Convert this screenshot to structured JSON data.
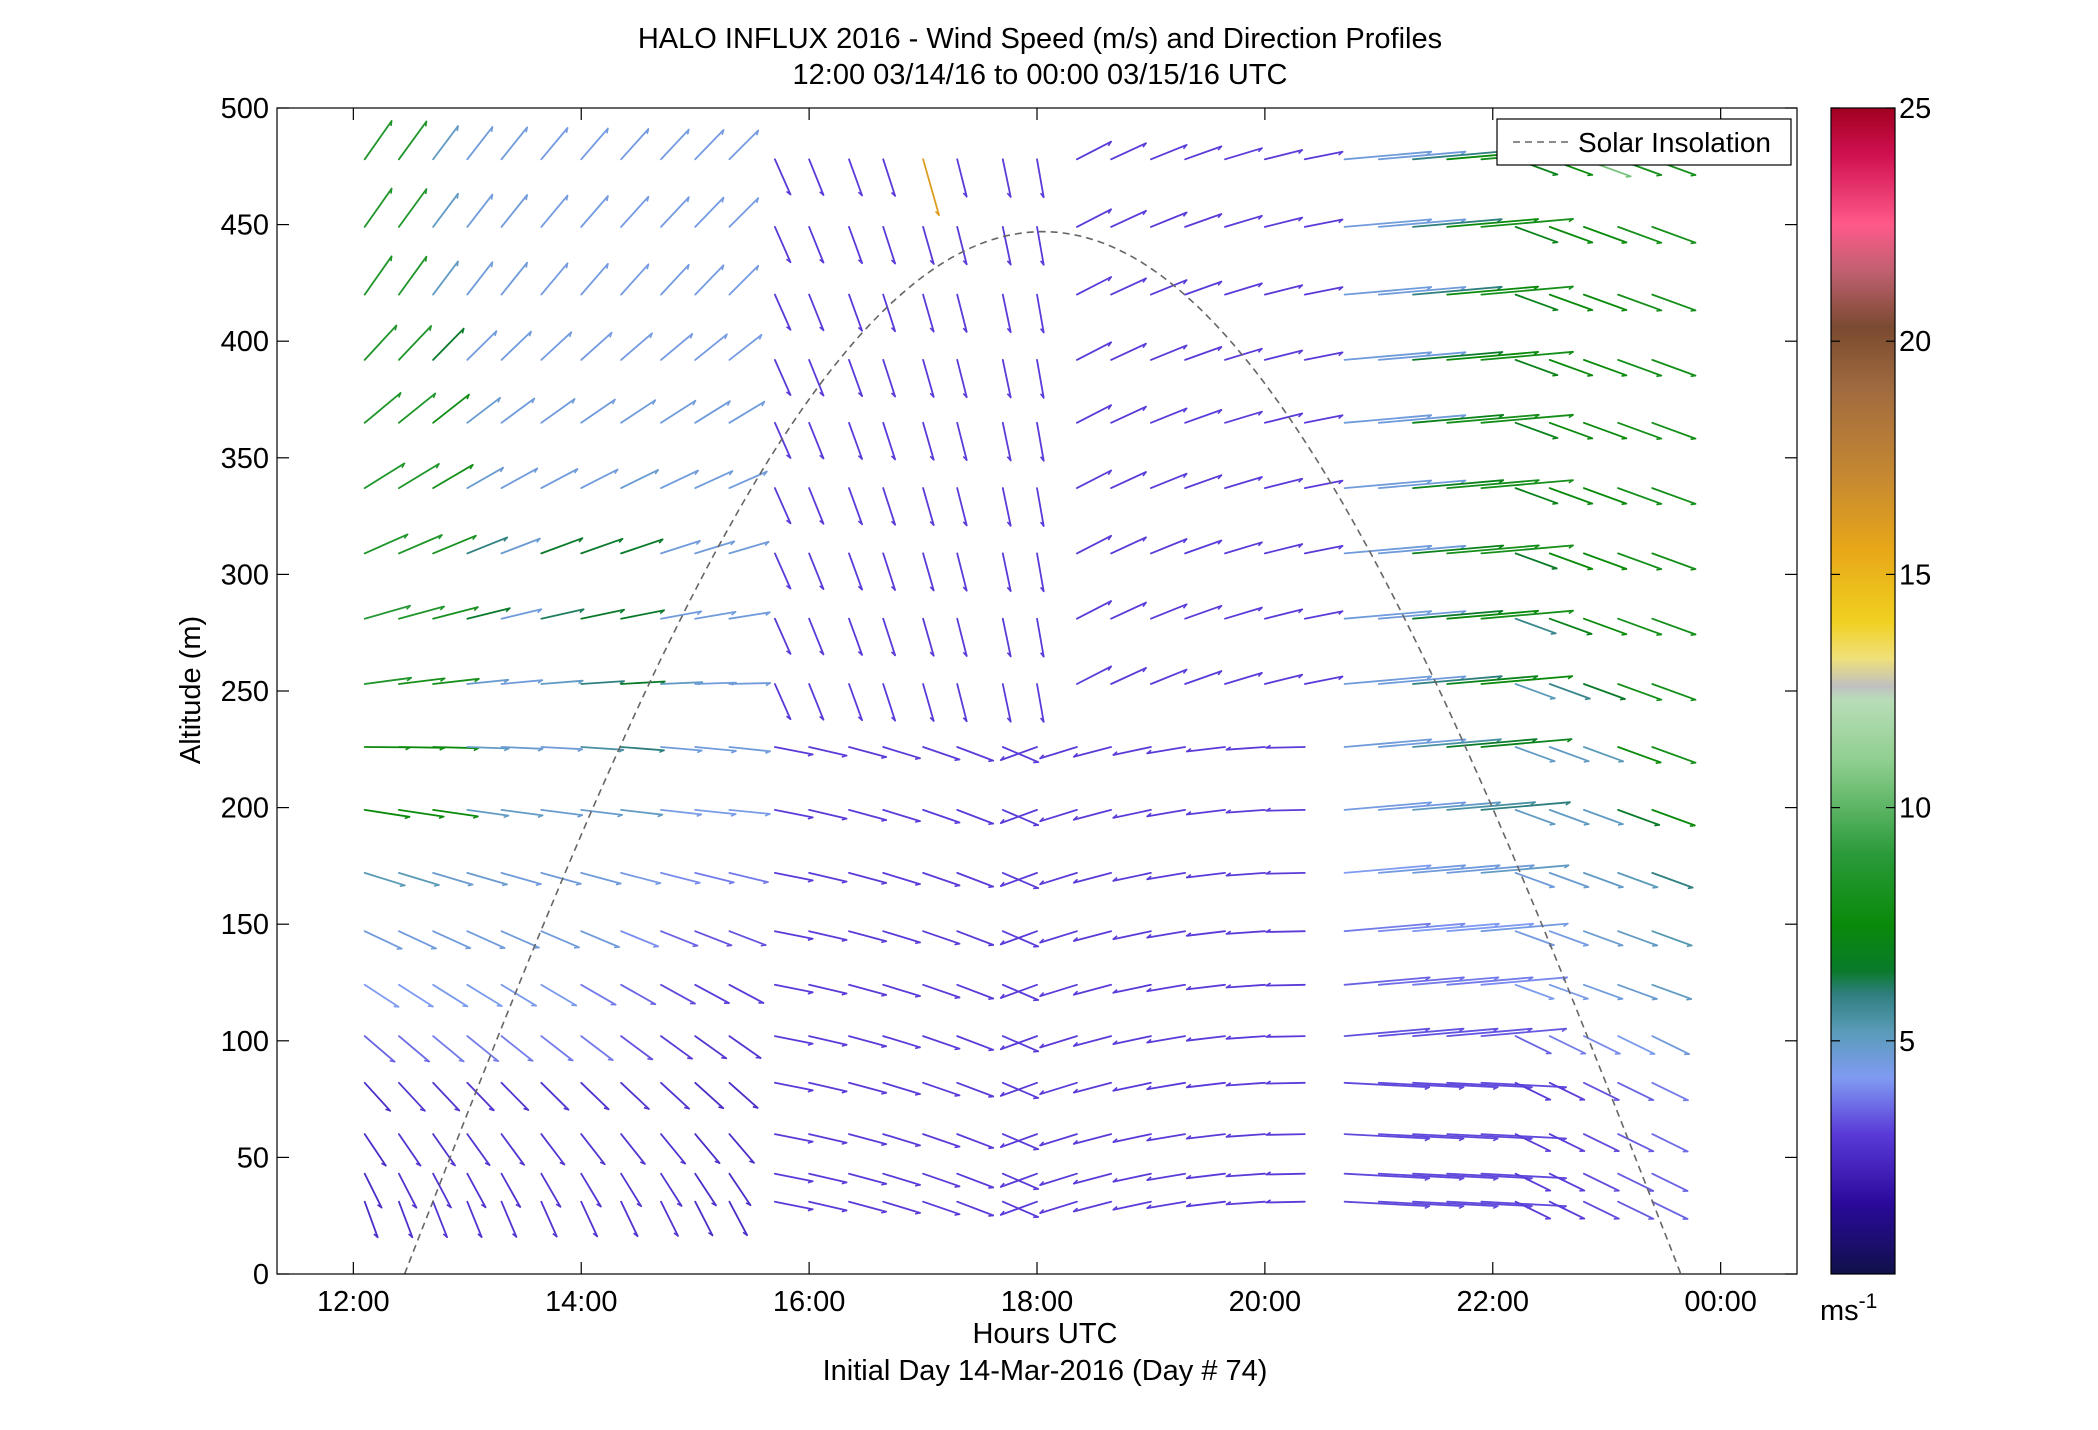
{
  "chart_data": {
    "type": "quiver",
    "title": "HALO INFLUX 2016 - Wind Speed (m/s) and Direction Profiles",
    "subtitle": "12:00 03/14/16 to 00:00 03/15/16  UTC",
    "xlabel": "Hours UTC",
    "xlabel_sub": "Initial Day 14-Mar-2016 (Day # 74)",
    "ylabel": "Altitude (m)",
    "xlim_hours": [
      11.33,
      24.67
    ],
    "ylim": [
      0,
      500
    ],
    "x_ticks": [
      {
        "hour": 12,
        "label": "12:00"
      },
      {
        "hour": 14,
        "label": "14:00"
      },
      {
        "hour": 16,
        "label": "16:00"
      },
      {
        "hour": 18,
        "label": "18:00"
      },
      {
        "hour": 20,
        "label": "20:00"
      },
      {
        "hour": 22,
        "label": "22:00"
      },
      {
        "hour": 24,
        "label": "00:00"
      }
    ],
    "y_ticks": [
      0,
      50,
      100,
      150,
      200,
      250,
      300,
      350,
      400,
      450,
      500
    ],
    "y_tick_labels": [
      "0",
      "50",
      "100",
      "150",
      "200",
      "250",
      "300",
      "350",
      "400",
      "450",
      "500"
    ],
    "legend": {
      "label": "Solar Insolation",
      "placement": "top-right",
      "style": "dashed",
      "color": "#666666"
    },
    "colorbar": {
      "min": 0,
      "max": 25,
      "ticks": [
        5,
        10,
        15,
        20,
        25
      ],
      "tick_labels": [
        "5",
        "10",
        "15",
        "20",
        "25"
      ],
      "unit_base": "ms",
      "unit_exp": "-1",
      "stops": [
        [
          0,
          "#10104a"
        ],
        [
          1.5,
          "#2a0a9a"
        ],
        [
          3,
          "#5a3ad8"
        ],
        [
          4.2,
          "#7f9bf2"
        ],
        [
          5.2,
          "#5a9bb8"
        ],
        [
          6,
          "#2f7f7f"
        ],
        [
          6.5,
          "#0a7a2a"
        ],
        [
          7.5,
          "#0a8a0a"
        ],
        [
          9,
          "#2a9a3a"
        ],
        [
          11,
          "#8fcf8f"
        ],
        [
          12.3,
          "#b8ddb8"
        ],
        [
          12.6,
          "#c0c0c0"
        ],
        [
          13.2,
          "#f0e07a"
        ],
        [
          14,
          "#f0d020"
        ],
        [
          15.5,
          "#e8a818"
        ],
        [
          17,
          "#c88a30"
        ],
        [
          19,
          "#a06a40"
        ],
        [
          20.3,
          "#7a4a30"
        ],
        [
          21.5,
          "#c06070"
        ],
        [
          22.5,
          "#ff5a8a"
        ],
        [
          24,
          "#d01050"
        ],
        [
          25,
          "#a00020"
        ]
      ]
    },
    "solar_insolation_curve": {
      "sunrise_hour": 12.45,
      "sunset_hour": 23.65,
      "peak_hour": 17.95,
      "peak_altitude": 447
    },
    "altitude_levels": [
      31,
      43,
      60,
      82,
      102,
      124,
      147,
      172,
      199,
      226,
      253,
      281,
      309,
      337,
      365,
      392,
      420,
      449,
      478
    ],
    "wind_dir_note": "u/v components: u = eastward, v = northward, in m/s",
    "columns": [
      {
        "hour": 12.1,
        "seg": "A",
        "sp": [
          2.6,
          2.6,
          2.6,
          2.6,
          3.5,
          4.2,
          4.6,
          5.2,
          7.5,
          7.5,
          8.5,
          8.8,
          8.5,
          8.5,
          8.5,
          8.5,
          8.5,
          8.5,
          8.5
        ]
      },
      {
        "hour": 12.4,
        "seg": "A",
        "sp": [
          2.7,
          2.8,
          2.8,
          2.8,
          3.6,
          4.2,
          4.6,
          5.2,
          7.5,
          7.5,
          8.0,
          8.5,
          8.5,
          8.5,
          8.5,
          8.5,
          8.5,
          8.5,
          8.5
        ]
      },
      {
        "hour": 12.7,
        "seg": "A",
        "sp": [
          2.8,
          2.8,
          2.8,
          2.8,
          3.8,
          4.3,
          4.6,
          4.8,
          7.5,
          7.5,
          8.0,
          8.2,
          8.2,
          8.0,
          7.8,
          6.5,
          5.0,
          5.0,
          5.0
        ]
      },
      {
        "hour": 13.0,
        "seg": "A",
        "sp": [
          2.8,
          2.8,
          2.8,
          2.8,
          3.8,
          4.3,
          4.6,
          4.8,
          5.0,
          5.0,
          4.8,
          6.5,
          6.0,
          4.8,
          4.8,
          4.6,
          4.6,
          4.6,
          4.6
        ]
      },
      {
        "hour": 13.3,
        "seg": "A",
        "sp": [
          2.8,
          2.8,
          2.8,
          2.8,
          3.8,
          4.3,
          4.6,
          4.6,
          5.0,
          4.8,
          4.6,
          4.6,
          4.8,
          4.6,
          4.6,
          4.6,
          4.6,
          4.6,
          4.6
        ]
      },
      {
        "hour": 13.65,
        "seg": "A",
        "sp": [
          2.8,
          2.8,
          2.8,
          2.8,
          3.8,
          4.3,
          4.6,
          4.6,
          4.8,
          4.6,
          5.0,
          6.2,
          6.5,
          4.6,
          4.6,
          4.5,
          4.5,
          4.5,
          4.5
        ]
      },
      {
        "hour": 14.0,
        "seg": "A",
        "sp": [
          2.8,
          2.8,
          2.8,
          2.8,
          3.8,
          3.8,
          4.6,
          4.6,
          4.8,
          5.5,
          6.0,
          6.5,
          6.5,
          4.6,
          4.6,
          4.5,
          4.5,
          4.5,
          4.5
        ]
      },
      {
        "hour": 14.35,
        "seg": "A",
        "sp": [
          2.8,
          2.8,
          2.8,
          2.8,
          3.3,
          3.5,
          4.0,
          4.4,
          5.0,
          6.0,
          6.5,
          6.5,
          6.5,
          4.8,
          4.6,
          4.5,
          4.5,
          4.5,
          4.5
        ]
      },
      {
        "hour": 14.7,
        "seg": "A",
        "sp": [
          2.8,
          2.8,
          2.8,
          2.8,
          3.0,
          3.2,
          3.5,
          4.0,
          4.4,
          4.6,
          5.0,
          4.6,
          4.6,
          4.6,
          4.6,
          4.5,
          4.5,
          4.5,
          4.5
        ]
      },
      {
        "hour": 15.0,
        "seg": "A",
        "sp": [
          2.6,
          2.6,
          2.6,
          2.6,
          2.8,
          3.0,
          3.3,
          3.8,
          4.4,
          4.6,
          4.6,
          4.6,
          4.6,
          4.6,
          4.6,
          4.5,
          4.5,
          4.5,
          4.5
        ]
      },
      {
        "hour": 15.3,
        "seg": "A",
        "sp": [
          2.6,
          2.6,
          2.6,
          2.6,
          2.8,
          3.0,
          3.3,
          3.8,
          4.4,
          4.6,
          4.6,
          4.6,
          4.6,
          4.6,
          4.6,
          4.5,
          4.5,
          4.5,
          4.5
        ]
      },
      {
        "hour": 15.7,
        "seg": "B",
        "sp": [
          3.0,
          3.0,
          3.0,
          3.0,
          3.0,
          3.0,
          3.0,
          3.0,
          3.0,
          3.0,
          3.0,
          3.0,
          3.0,
          3.0,
          3.0,
          3.0,
          3.0,
          3.0,
          3.0
        ]
      },
      {
        "hour": 16.0,
        "seg": "B",
        "sp": [
          3.0,
          3.0,
          3.0,
          3.0,
          3.0,
          3.0,
          3.0,
          3.0,
          3.0,
          3.0,
          3.0,
          3.0,
          3.0,
          3.0,
          3.0,
          3.0,
          3.0,
          3.0,
          3.0
        ]
      },
      {
        "hour": 16.35,
        "seg": "B",
        "sp": [
          3.0,
          3.0,
          3.0,
          3.0,
          3.0,
          3.0,
          3.0,
          3.0,
          3.0,
          3.0,
          3.0,
          3.0,
          3.0,
          3.0,
          3.0,
          3.0,
          3.0,
          3.0,
          3.0
        ]
      },
      {
        "hour": 16.65,
        "seg": "B",
        "sp": [
          3.0,
          3.0,
          3.0,
          3.0,
          3.0,
          3.0,
          3.0,
          3.0,
          3.0,
          3.0,
          3.0,
          3.0,
          3.0,
          3.0,
          3.0,
          3.0,
          3.0,
          3.0,
          3.0
        ]
      },
      {
        "hour": 17.0,
        "seg": "B",
        "sp": [
          3.0,
          3.0,
          3.0,
          3.0,
          3.0,
          3.0,
          3.0,
          3.0,
          3.0,
          3.0,
          3.0,
          3.0,
          3.0,
          3.0,
          3.0,
          3.0,
          3.0,
          3.0,
          16.0
        ]
      },
      {
        "hour": 17.3,
        "seg": "B",
        "sp": [
          3.0,
          3.0,
          3.0,
          3.0,
          3.0,
          3.0,
          3.0,
          3.0,
          3.0,
          3.0,
          3.0,
          3.0,
          3.0,
          3.0,
          3.0,
          3.0,
          3.0,
          3.0,
          3.0
        ]
      },
      {
        "hour": 17.7,
        "seg": "B",
        "sp": [
          3.0,
          3.0,
          3.0,
          3.0,
          3.0,
          3.0,
          3.0,
          3.0,
          3.0,
          3.0,
          3.0,
          3.0,
          3.0,
          3.0,
          3.0,
          3.0,
          3.0,
          3.0,
          3.0
        ]
      },
      {
        "hour": 18.0,
        "seg": "B",
        "sp": [
          3.0,
          3.0,
          3.0,
          3.0,
          3.0,
          3.0,
          3.0,
          3.0,
          3.0,
          3.0,
          3.0,
          3.0,
          3.0,
          3.0,
          3.0,
          3.0,
          3.0,
          3.0,
          3.0
        ]
      },
      {
        "hour": 18.35,
        "seg": "B",
        "sp": [
          3.0,
          3.0,
          3.0,
          3.0,
          3.0,
          3.0,
          3.0,
          3.0,
          3.0,
          3.0,
          3.0,
          3.0,
          3.0,
          3.0,
          3.0,
          3.0,
          3.0,
          3.0,
          3.0
        ]
      },
      {
        "hour": 18.65,
        "seg": "B",
        "sp": [
          3.0,
          3.0,
          3.0,
          3.0,
          3.0,
          3.0,
          3.0,
          3.0,
          3.0,
          3.0,
          3.0,
          3.0,
          3.0,
          3.0,
          3.0,
          3.0,
          3.0,
          3.0,
          3.0
        ]
      },
      {
        "hour": 19.0,
        "seg": "B",
        "sp": [
          3.0,
          3.0,
          3.0,
          3.0,
          3.0,
          3.0,
          3.0,
          3.0,
          3.0,
          3.0,
          3.0,
          3.0,
          3.0,
          3.0,
          3.0,
          3.0,
          3.0,
          3.0,
          3.0
        ]
      },
      {
        "hour": 19.3,
        "seg": "B",
        "sp": [
          3.0,
          3.0,
          3.0,
          3.0,
          3.0,
          3.0,
          3.0,
          3.0,
          3.0,
          3.0,
          3.0,
          3.0,
          3.0,
          3.0,
          3.0,
          3.0,
          3.0,
          3.0,
          3.0
        ]
      },
      {
        "hour": 19.65,
        "seg": "B",
        "sp": [
          3.0,
          3.0,
          3.0,
          3.0,
          3.0,
          3.0,
          3.0,
          3.0,
          3.0,
          3.0,
          3.0,
          3.0,
          3.0,
          3.0,
          3.0,
          3.0,
          3.0,
          3.0,
          3.0
        ]
      },
      {
        "hour": 20.0,
        "seg": "B",
        "sp": [
          3.0,
          3.0,
          3.0,
          3.0,
          3.0,
          3.0,
          3.0,
          3.0,
          3.0,
          3.0,
          3.0,
          3.0,
          3.0,
          3.0,
          3.0,
          3.0,
          3.0,
          3.0,
          3.0
        ]
      },
      {
        "hour": 20.35,
        "seg": "B",
        "sp": [
          3.0,
          3.0,
          3.0,
          3.0,
          3.0,
          3.0,
          3.0,
          3.0,
          3.0,
          3.0,
          3.0,
          3.0,
          3.0,
          3.0,
          3.0,
          3.0,
          3.0,
          3.0,
          3.0
        ]
      },
      {
        "hour": 20.7,
        "seg": "C",
        "sp": [
          3.2,
          3.2,
          3.2,
          3.2,
          3.3,
          3.5,
          3.8,
          4.2,
          4.5,
          4.6,
          4.6,
          4.6,
          4.6,
          4.6,
          4.6,
          4.6,
          4.6,
          4.6,
          4.6
        ]
      },
      {
        "hour": 21.0,
        "seg": "C",
        "sp": [
          3.2,
          3.2,
          3.2,
          3.2,
          3.3,
          3.6,
          4.0,
          4.5,
          4.5,
          4.6,
          4.6,
          4.6,
          4.6,
          4.6,
          4.6,
          4.6,
          4.6,
          4.6,
          4.6
        ]
      },
      {
        "hour": 21.3,
        "seg": "C",
        "sp": [
          3.2,
          3.2,
          3.2,
          3.2,
          3.3,
          3.8,
          4.2,
          4.6,
          5.0,
          5.5,
          6.0,
          6.5,
          7.0,
          7.0,
          7.0,
          6.5,
          6.0,
          6.0,
          6.0
        ]
      },
      {
        "hour": 21.6,
        "seg": "C",
        "sp": [
          3.2,
          3.2,
          3.2,
          3.2,
          3.3,
          3.8,
          4.2,
          4.6,
          5.5,
          6.5,
          7.0,
          7.5,
          8.0,
          8.0,
          8.0,
          7.5,
          7.5,
          7.5,
          7.5
        ]
      },
      {
        "hour": 21.9,
        "seg": "C",
        "sp": [
          3.2,
          3.2,
          3.2,
          3.2,
          3.4,
          4.0,
          4.5,
          5.0,
          6.0,
          7.0,
          7.5,
          8.0,
          8.0,
          8.0,
          8.0,
          8.0,
          8.0,
          8.0,
          8.0
        ]
      },
      {
        "hour": 22.2,
        "seg": "D",
        "sp": [
          3.0,
          3.0,
          3.0,
          3.0,
          3.5,
          4.3,
          4.5,
          4.6,
          5.0,
          5.0,
          5.2,
          5.8,
          6.5,
          7.0,
          7.0,
          7.0,
          7.0,
          7.0,
          7.0
        ]
      },
      {
        "hour": 22.5,
        "seg": "D",
        "sp": [
          3.0,
          3.0,
          3.0,
          3.0,
          3.8,
          4.4,
          4.5,
          4.8,
          5.0,
          5.0,
          5.8,
          7.0,
          7.5,
          7.5,
          7.5,
          7.5,
          7.5,
          7.5,
          7.5
        ]
      },
      {
        "hour": 22.8,
        "seg": "D",
        "sp": [
          3.2,
          3.2,
          3.2,
          3.3,
          4.0,
          4.6,
          4.8,
          5.0,
          5.0,
          5.2,
          6.5,
          7.5,
          7.5,
          7.5,
          7.5,
          7.5,
          7.5,
          7.5,
          10.5
        ]
      },
      {
        "hour": 23.1,
        "seg": "D",
        "sp": [
          3.4,
          3.4,
          3.4,
          3.5,
          4.3,
          4.8,
          5.0,
          5.2,
          6.5,
          7.5,
          8.0,
          8.0,
          8.0,
          8.0,
          8.0,
          8.0,
          8.0,
          8.0,
          8.0
        ]
      },
      {
        "hour": 23.4,
        "seg": "D",
        "sp": [
          3.5,
          3.5,
          3.6,
          3.8,
          4.6,
          5.0,
          5.3,
          6.0,
          7.5,
          8.0,
          8.0,
          8.0,
          8.0,
          8.0,
          8.0,
          8.0,
          8.0,
          8.0,
          8.0
        ]
      }
    ]
  }
}
